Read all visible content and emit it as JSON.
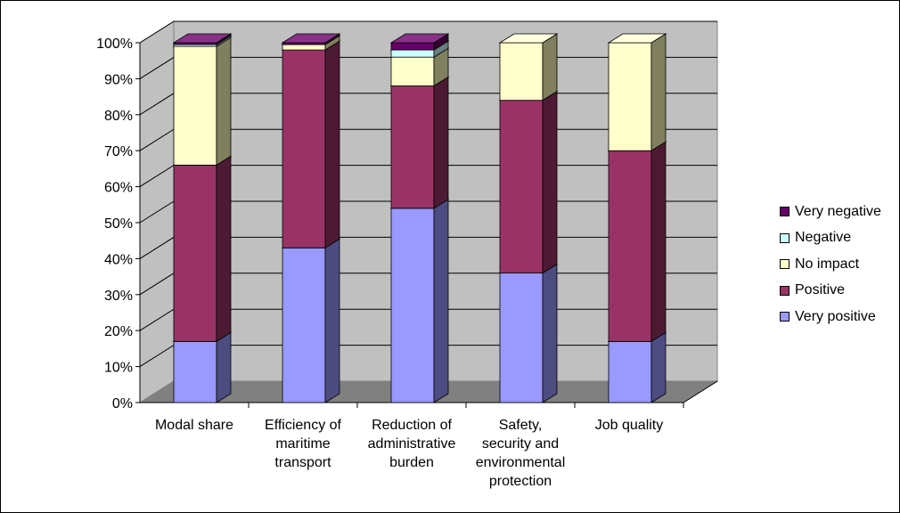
{
  "chart_data": {
    "type": "bar",
    "stacked": true,
    "percent": true,
    "three_d": true,
    "categories": [
      [
        "Modal share"
      ],
      [
        "Efficiency of",
        "maritime",
        "transport"
      ],
      [
        "Reduction of",
        "administrative",
        "burden"
      ],
      [
        "Safety,",
        "security and",
        "environmental",
        "protection"
      ],
      [
        "Job quality"
      ]
    ],
    "series": [
      {
        "name": "Very positive",
        "color": "#9999FF",
        "side": "#4C4C80",
        "top": "#B8B8FF",
        "values": [
          17,
          43,
          54,
          36,
          17
        ]
      },
      {
        "name": "Positive",
        "color": "#993366",
        "side": "#4D1A33",
        "top": "#B35A88",
        "values": [
          49,
          55,
          34,
          48,
          53
        ]
      },
      {
        "name": "No impact",
        "color": "#FFFFCC",
        "side": "#80805E",
        "top": "#FFFFE0",
        "values": [
          33,
          1.5,
          8,
          16,
          30
        ]
      },
      {
        "name": "Negative",
        "color": "#CCFFFF",
        "side": "#668080",
        "top": "#E0FFFF",
        "values": [
          0.5,
          0,
          2,
          0,
          0
        ]
      },
      {
        "name": "Very negative",
        "color": "#660066",
        "side": "#330033",
        "top": "#883388",
        "values": [
          0.5,
          0.5,
          2,
          0,
          0
        ]
      }
    ],
    "y_ticks": [
      "0%",
      "10%",
      "20%",
      "30%",
      "40%",
      "50%",
      "60%",
      "70%",
      "80%",
      "90%",
      "100%"
    ],
    "ylim": [
      0,
      100
    ],
    "grid": true,
    "legend_position": "right",
    "wall_color": "#C0C0C0",
    "floor_color": "#808080"
  }
}
